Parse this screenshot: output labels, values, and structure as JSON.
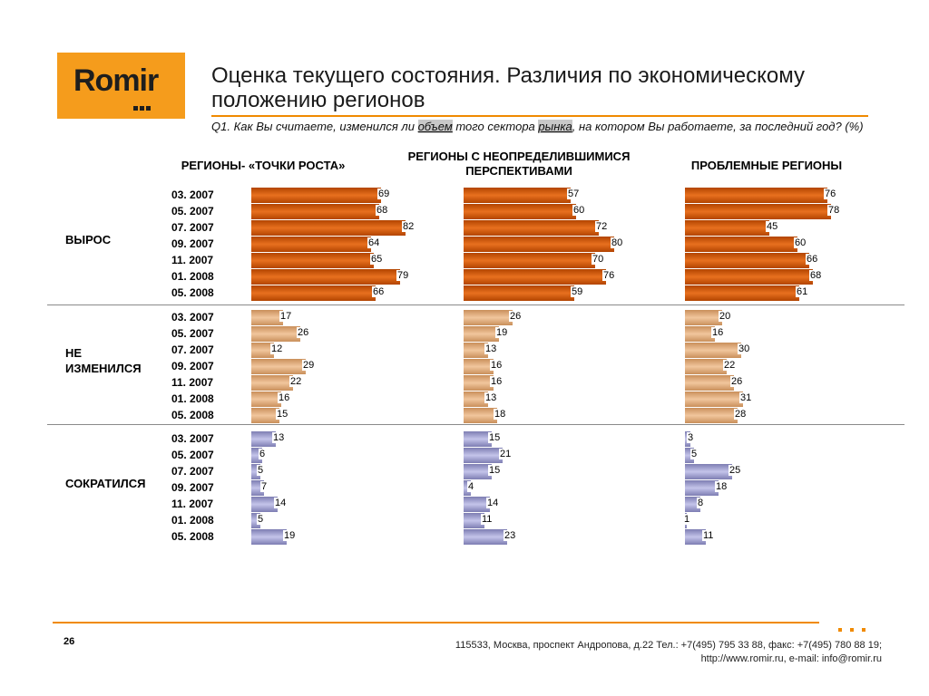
{
  "logo": {
    "text": "Romir"
  },
  "title": "Оценка текущего состояния. Различия по экономическому положению регионов",
  "question": {
    "prefix": "Q1. Как Вы считаете, изменился ли ",
    "hl1": "объем",
    "mid": " того сектора ",
    "hl2": "рынка",
    "suffix": ", на котором Вы работаете, за последний год? (%)"
  },
  "columns": [
    "РЕГИОНЫ- «ТОЧКИ РОСТА»",
    "РЕГИОНЫ   С НЕОПРЕДЕЛИВШИМИСЯ ПЕРСПЕКТИВАМИ",
    "ПРОБЛЕМНЫЕ РЕГИОНЫ"
  ],
  "categories": [
    "ВЫРОС",
    "НЕ ИЗМЕНИЛСЯ",
    "СОКРАТИЛСЯ"
  ],
  "periods": [
    "03. 2007",
    "05. 2007",
    "07. 2007",
    "09. 2007",
    "11. 2007",
    "01. 2008",
    "05. 2008"
  ],
  "chart_data": {
    "type": "bar",
    "orientation": "horizontal",
    "panels": [
      {
        "column": "РЕГИОНЫ- «ТОЧКИ РОСТА»",
        "series": [
          {
            "name": "ВЫРОС",
            "values": [
              69,
              68,
              82,
              64,
              65,
              79,
              66
            ]
          },
          {
            "name": "НЕ ИЗМЕНИЛСЯ",
            "values": [
              17,
              26,
              12,
              29,
              22,
              16,
              15
            ]
          },
          {
            "name": "СОКРАТИЛСЯ",
            "values": [
              13,
              6,
              5,
              7,
              14,
              5,
              19
            ]
          }
        ]
      },
      {
        "column": "РЕГИОНЫ   С НЕОПРЕДЕЛИВШИМИСЯ ПЕРСПЕКТИВАМИ",
        "series": [
          {
            "name": "ВЫРОС",
            "values": [
              57,
              60,
              72,
              80,
              70,
              76,
              59
            ]
          },
          {
            "name": "НЕ ИЗМЕНИЛСЯ",
            "values": [
              26,
              19,
              13,
              16,
              16,
              13,
              18
            ]
          },
          {
            "name": "СОКРАТИЛСЯ",
            "values": [
              15,
              21,
              15,
              4,
              14,
              11,
              23
            ]
          }
        ]
      },
      {
        "column": "ПРОБЛЕМНЫЕ РЕГИОНЫ",
        "series": [
          {
            "name": "ВЫРОС",
            "values": [
              76,
              78,
              45,
              60,
              66,
              68,
              61
            ]
          },
          {
            "name": "НЕ ИЗМЕНИЛСЯ",
            "values": [
              20,
              16,
              30,
              22,
              26,
              31,
              28
            ]
          },
          {
            "name": "СОКРАТИЛСЯ",
            "values": [
              3,
              5,
              25,
              18,
              8,
              1,
              11
            ]
          }
        ]
      }
    ]
  },
  "footer": {
    "page": "26",
    "address": "115533, Москва, проспект Андропова, д.22   Тел.: +7(495) 795 33 88, факс: +7(495) 780 88 19;",
    "contacts": "http://www.romir.ru, e-mail: info@romir.ru"
  }
}
